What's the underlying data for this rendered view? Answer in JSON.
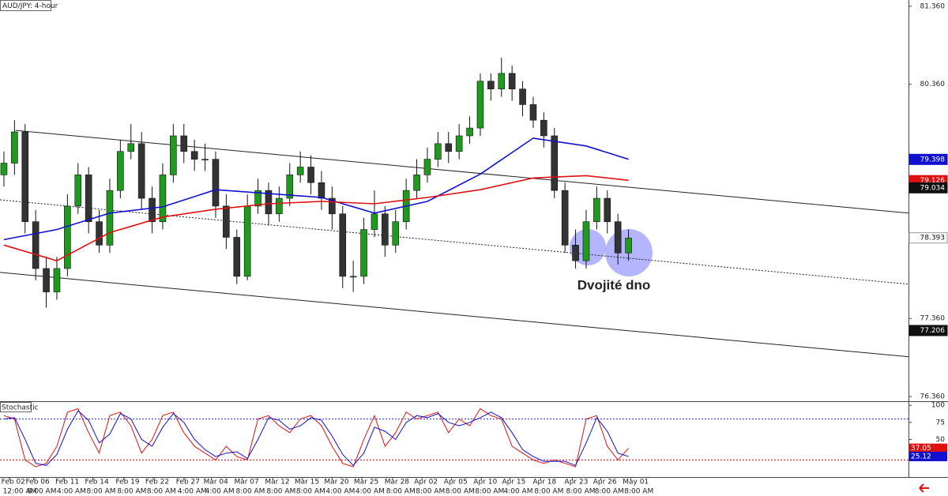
{
  "chart_data": [
    {
      "type": "candlestick",
      "title": "AUD/JPY: 4-hour",
      "annotation": "Dvojité dno",
      "up_color": "#1f9a1f",
      "down_color": "#333333",
      "open": [
        79.2,
        79.35,
        79.75,
        78.6,
        78,
        77.7,
        78,
        78.8,
        79.2,
        78.6,
        78.3,
        79,
        79.5,
        79.6,
        78.9,
        78.6,
        79.2,
        79.7,
        79.5,
        79.4,
        79.4,
        78.8,
        78.4,
        77.9,
        78.8,
        79,
        78.7,
        78.9,
        79.2,
        79.3,
        79.1,
        78.9,
        78.7,
        77.9,
        77.9,
        78.5,
        78.7,
        78.3,
        78.6,
        79,
        79.2,
        79.4,
        79.6,
        79.5,
        79.7,
        79.8,
        80.4,
        80.3,
        80.5,
        80.3,
        80.1,
        79.9,
        79.7,
        79,
        78.3,
        78.1,
        78.6,
        78.9,
        78.6,
        78.2
      ],
      "high": [
        79.5,
        79.9,
        79.85,
        78.75,
        78.15,
        78.15,
        78.95,
        79.35,
        79.3,
        78.75,
        79.15,
        79.65,
        79.85,
        79.75,
        79.05,
        79.35,
        79.85,
        79.85,
        79.65,
        79.6,
        79.5,
        78.95,
        78.5,
        78.95,
        79.15,
        79.1,
        79.05,
        79.35,
        79.5,
        79.45,
        79.25,
        79.05,
        78.8,
        78.1,
        78.65,
        79,
        78.8,
        78.75,
        79.15,
        79.4,
        79.55,
        79.75,
        79.75,
        79.85,
        79.95,
        80.5,
        80.5,
        80.7,
        80.6,
        80.4,
        80.2,
        80,
        79.8,
        79.1,
        78.5,
        78.75,
        79.05,
        79,
        78.7,
        78.5
      ],
      "low": [
        79.05,
        79.2,
        78.45,
        77.85,
        77.5,
        77.6,
        77.9,
        78.7,
        78.45,
        78.2,
        78.2,
        78.9,
        79.4,
        78.75,
        78.45,
        78.5,
        79.1,
        79.35,
        79.25,
        79.25,
        78.65,
        78.25,
        77.8,
        77.85,
        78.7,
        78.55,
        78.6,
        78.8,
        79.1,
        78.95,
        78.75,
        78.5,
        77.75,
        77.7,
        77.8,
        78.4,
        78.15,
        78.2,
        78.5,
        78.9,
        79.1,
        79.3,
        79.35,
        79.4,
        79.6,
        79.7,
        80.15,
        80.2,
        80.15,
        79.95,
        79.8,
        79.55,
        78.9,
        78.2,
        78,
        78,
        78.5,
        78.45,
        78.05,
        78.1
      ],
      "close": [
        79.35,
        79.75,
        78.6,
        78,
        77.7,
        78,
        78.8,
        79.2,
        78.6,
        78.3,
        79,
        79.5,
        79.6,
        78.9,
        78.6,
        79.2,
        79.7,
        79.5,
        79.4,
        79.4,
        78.8,
        78.4,
        77.9,
        78.8,
        79,
        78.7,
        78.9,
        79.2,
        79.3,
        79.1,
        78.9,
        78.7,
        77.9,
        77.9,
        78.5,
        78.7,
        78.3,
        78.6,
        79,
        79.2,
        79.4,
        79.6,
        79.5,
        79.7,
        79.8,
        80.4,
        80.3,
        80.5,
        80.3,
        80.1,
        79.9,
        79.7,
        79,
        78.3,
        78.1,
        78.6,
        78.9,
        78.6,
        78.2,
        78.39
      ],
      "series": [
        {
          "color": "#1010d0",
          "x": [
            0,
            5,
            10,
            15,
            20,
            25,
            30,
            35,
            40,
            45,
            50,
            55,
            59
          ],
          "values": [
            78.37,
            78.5,
            78.71,
            78.79,
            79.01,
            78.96,
            78.91,
            78.71,
            78.86,
            79.21,
            79.67,
            79.57,
            79.4
          ]
        },
        {
          "color": "#e01010",
          "x": [
            0,
            5,
            10,
            15,
            20,
            25,
            30,
            35,
            40,
            45,
            50,
            55,
            59
          ],
          "values": [
            78.3,
            78.1,
            78.46,
            78.66,
            78.76,
            78.83,
            78.86,
            78.83,
            78.91,
            79.01,
            79.16,
            79.19,
            79.13
          ]
        }
      ],
      "trendlines": [
        {
          "x": [
            1.1,
            85.45
          ],
          "values": [
            79.77,
            78.71
          ],
          "style": "solid"
        },
        {
          "x": [
            -0.37,
            85.45
          ],
          "values": [
            78.88,
            77.8
          ],
          "style": "dotted"
        },
        {
          "x": [
            -0.37,
            85.45
          ],
          "values": [
            77.95,
            76.87
          ],
          "style": "solid"
        }
      ],
      "price_labels": [
        {
          "value": 79.398,
          "color": "#1010d0",
          "text_color": "#ffffff"
        },
        {
          "value": 79.126,
          "color": "#e01010",
          "text_color": "#ffffff"
        },
        {
          "value": 79.034,
          "color": "#111111",
          "text_color": "#ffffff"
        },
        {
          "value": 78.393,
          "color": "#ffffff",
          "text_color": "#111111"
        },
        {
          "value": 77.206,
          "color": "#111111",
          "text_color": "#ffffff"
        }
      ],
      "xlim": [
        -0.37,
        85.45
      ],
      "ylim": [
        76.3,
        81.44
      ],
      "yticks": [
        {
          "value": 76.36,
          "label": "76.360"
        },
        {
          "value": 77.36,
          "label": "77.360"
        },
        {
          "value": 80.36,
          "label": "80.360"
        },
        {
          "value": 81.36,
          "label": "81.360"
        }
      ]
    },
    {
      "type": "line",
      "title": "Stochastic",
      "series": [
        {
          "color": "#e01010",
          "values": [
            85,
            80,
            20,
            10,
            15,
            40,
            90,
            95,
            60,
            30,
            85,
            90,
            70,
            30,
            50,
            85,
            90,
            60,
            40,
            30,
            20,
            40,
            25,
            20,
            80,
            85,
            70,
            60,
            80,
            85,
            70,
            40,
            15,
            10,
            50,
            85,
            40,
            60,
            90,
            80,
            85,
            90,
            60,
            80,
            70,
            95,
            85,
            80,
            40,
            30,
            20,
            15,
            20,
            15,
            10,
            80,
            85,
            40,
            20,
            37.05
          ]
        },
        {
          "color": "#1010d0",
          "values": [
            80,
            82,
            50,
            15,
            12,
            28,
            65,
            92,
            78,
            45,
            58,
            88,
            80,
            50,
            40,
            68,
            88,
            75,
            50,
            35,
            25,
            30,
            32,
            22,
            50,
            82,
            78,
            65,
            70,
            82,
            78,
            55,
            28,
            12,
            30,
            68,
            62,
            50,
            75,
            85,
            82,
            88,
            75,
            70,
            75,
            82,
            90,
            82,
            60,
            35,
            25,
            18,
            18,
            18,
            12,
            45,
            82,
            62,
            30,
            25.12
          ]
        }
      ],
      "last_value_box": true,
      "levels": [
        {
          "value": 80,
          "color": "#3333cc"
        },
        {
          "value": 20,
          "color": "#cc0000"
        }
      ],
      "xlim": [
        -0.37,
        85.45
      ],
      "ylim": [
        -5,
        106
      ],
      "yticks": [
        100,
        75,
        50
      ],
      "xticks": [
        {
          "value": 0.5,
          "label": "Feb 02",
          "time": "12:00 AM"
        },
        {
          "value": 2.8,
          "label": "Feb 06",
          "time": "8:00 AM"
        },
        {
          "value": 5.6,
          "label": "Feb 11",
          "time": "4:00 AM"
        },
        {
          "value": 8.4,
          "label": "Feb 14",
          "time": "8:00 AM"
        },
        {
          "value": 11.3,
          "label": "Feb 19",
          "time": "8:00 AM"
        },
        {
          "value": 14.1,
          "label": "Feb 22",
          "time": "8:00 AM"
        },
        {
          "value": 17.0,
          "label": "Feb 27",
          "time": "4:00 AM"
        },
        {
          "value": 19.6,
          "label": "Mar 04",
          "time": "4:00 AM"
        },
        {
          "value": 22.5,
          "label": "Mar 07",
          "time": "8:00 AM"
        },
        {
          "value": 25.4,
          "label": "Mar 12",
          "time": "8:00 AM"
        },
        {
          "value": 28.2,
          "label": "Mar 15",
          "time": "8:00 AM"
        },
        {
          "value": 31.0,
          "label": "Mar 20",
          "time": "4:00 AM"
        },
        {
          "value": 33.8,
          "label": "Mar 25",
          "time": "4:00 AM"
        },
        {
          "value": 36.7,
          "label": "Mar 28",
          "time": "8:00 AM"
        },
        {
          "value": 39.5,
          "label": "Apr 02",
          "time": "8:00 AM"
        },
        {
          "value": 42.3,
          "label": "Apr 05",
          "time": "8:00 AM"
        },
        {
          "value": 45.1,
          "label": "Apr 10",
          "time": "8:00 AM"
        },
        {
          "value": 47.8,
          "label": "Apr 15",
          "time": "4:00 AM"
        },
        {
          "value": 50.7,
          "label": "Apr 18",
          "time": "8:00 AM"
        },
        {
          "value": 53.7,
          "label": "Apr 23",
          "time": "8:00 AM"
        },
        {
          "value": 56.4,
          "label": "Apr 26",
          "time": "8:00 AM"
        },
        {
          "value": 59.2,
          "label": "May 01",
          "time": "8:00 AM"
        }
      ]
    }
  ]
}
